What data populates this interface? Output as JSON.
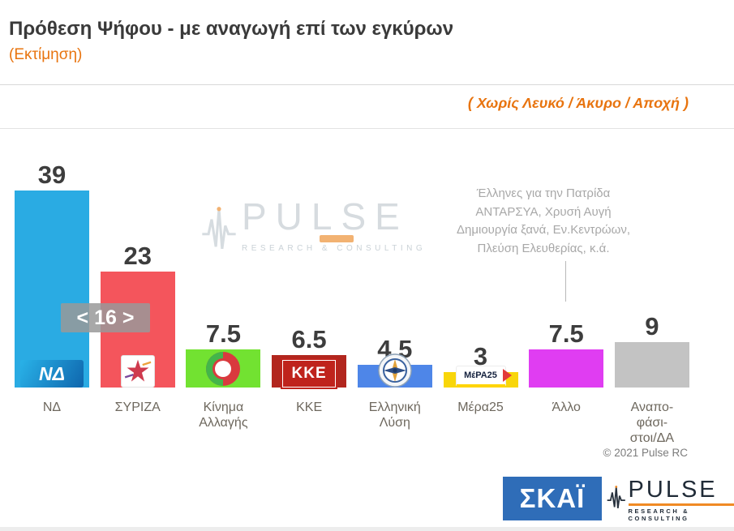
{
  "header": {
    "title": "Πρόθεση Ψήφου - με αναγωγή επί των εγκύρων",
    "subtitle": "(Εκτίμηση)",
    "note": "( Χωρίς Λευκό / Άκυρο / Αποχή )"
  },
  "chart_data": {
    "type": "bar",
    "title": "Πρόθεση Ψήφου - με αναγωγή επί των εγκύρων (Εκτίμηση)",
    "categories": [
      "ΝΔ",
      "ΣΥΡΙΖΑ",
      "Κίνημα Αλλαγής",
      "ΚΚΕ",
      "Ελληνική Λύση",
      "Μέρα25",
      "Άλλο",
      "Αναποφάσιστοι/ΔΑ"
    ],
    "tick_labels": [
      "ΝΔ",
      "ΣΥΡΙΖΑ",
      "Κίνημα\nΑλλαγής",
      "ΚΚΕ",
      "Ελληνική\nΛύση",
      "Μέρα25",
      "Άλλο",
      "Αναπο-\nφάσι-\nστοι/ΔΑ"
    ],
    "values": [
      39,
      23,
      7.5,
      6.5,
      4.5,
      3,
      7.5,
      9
    ],
    "value_labels": [
      "39",
      "23",
      "7.5",
      "6.5",
      "4.5",
      "3",
      "7.5",
      "9"
    ],
    "colors": [
      "#2aabe3",
      "#f4555c",
      "#72e231",
      "#b2261e",
      "#4e86e8",
      "#f8d60a",
      "#e03df2",
      "#c3c3c3"
    ],
    "logos": [
      {
        "type": "nd",
        "text": "ΝΔ"
      },
      {
        "type": "syriza"
      },
      {
        "type": "kinal"
      },
      {
        "type": "kke",
        "text": "ΚΚΕ"
      },
      {
        "type": "ellysi"
      },
      {
        "type": "mera25",
        "text": "ΜέΡΑ25"
      },
      null,
      null
    ],
    "lead_badge": "< 16 >",
    "annotation": "Έλληνες για την Πατρίδα\nΑΝΤΑΡΣΥΑ, Χρυσή Αυγή\nΔημιουργία ξανά, Εν.Κεντρώων,\nΠλεύση  Ελευθερίας, κ.ά.",
    "annotation_target": "Άλλο",
    "xlabel": "",
    "ylabel": "",
    "ylim": [
      0,
      45
    ],
    "grid": false,
    "legend_position": "none"
  },
  "watermark": {
    "brand": "PULSE",
    "tagline": "RESEARCH & CONSULTING"
  },
  "footer": {
    "copyright": "© 2021 Pulse RC",
    "skai_logo": "ΣΚΑΪ",
    "pulse_brand": "PULSE",
    "pulse_tagline": "RESEARCH & CONSULTING"
  }
}
